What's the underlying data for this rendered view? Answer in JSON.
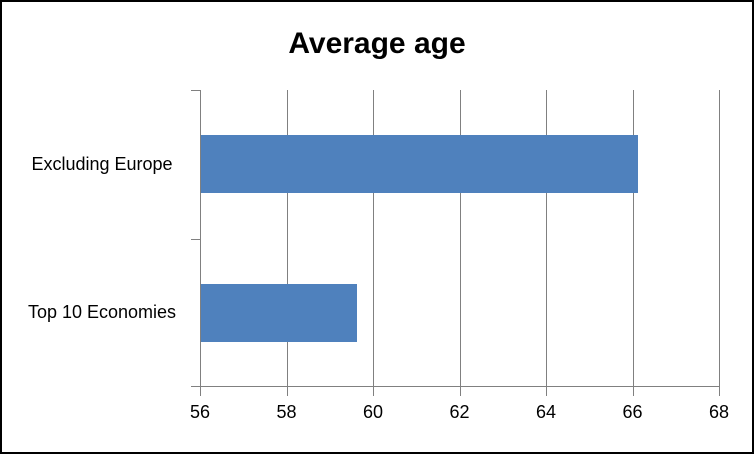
{
  "chart": {
    "background": "#ffffff",
    "border_color": "#000000",
    "text_color": "#000000"
  },
  "chart_data": {
    "type": "bar",
    "orientation": "horizontal",
    "title": "Average age",
    "categories": [
      "Excluding Europe",
      "Top 10 Economies"
    ],
    "values": [
      66.1,
      59.6
    ],
    "xlabel": "",
    "ylabel": "",
    "xlim": [
      56,
      68
    ],
    "xticks": [
      56,
      58,
      60,
      62,
      64,
      66,
      68
    ],
    "bar_color": "#4f81bd",
    "gridline_color": "#808080",
    "axis_color": "#808080",
    "grid": true,
    "legend": false
  }
}
